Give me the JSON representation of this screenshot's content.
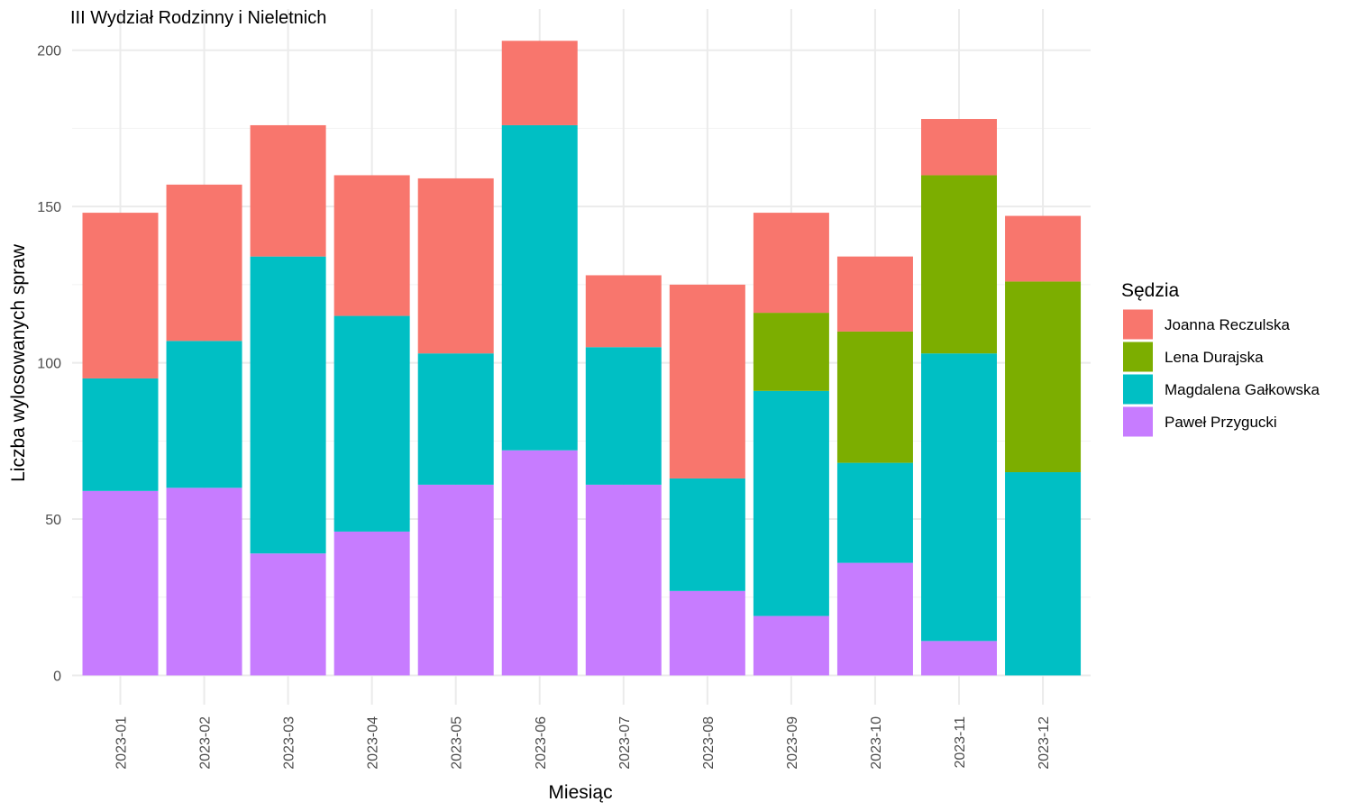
{
  "chart_data": {
    "type": "bar",
    "stacked": true,
    "title": "III Wydział Rodzinny i Nieletnich",
    "xlabel": "Miesiąc",
    "ylabel": "Liczba wylosowanych spraw",
    "categories": [
      "2023-01",
      "2023-02",
      "2023-03",
      "2023-04",
      "2023-05",
      "2023-06",
      "2023-07",
      "2023-08",
      "2023-09",
      "2023-10",
      "2023-11",
      "2023-12"
    ],
    "ylim": [
      0,
      210
    ],
    "yticks": [
      0,
      50,
      100,
      150,
      200
    ],
    "grid": true,
    "legend_title": "Sędzia",
    "legend_position": "right",
    "series": [
      {
        "name": "Joanna Reczulska",
        "color": "#F8766D",
        "values": [
          53,
          50,
          42,
          45,
          56,
          27,
          23,
          62,
          32,
          24,
          18,
          21
        ]
      },
      {
        "name": "Lena Durajska",
        "color": "#7CAE00",
        "values": [
          0,
          0,
          0,
          0,
          0,
          0,
          0,
          0,
          25,
          42,
          57,
          61
        ]
      },
      {
        "name": "Magdalena Gałkowska",
        "color": "#00BFC4",
        "values": [
          36,
          47,
          95,
          69,
          42,
          104,
          44,
          36,
          72,
          32,
          92,
          65
        ]
      },
      {
        "name": "Paweł Przygucki",
        "color": "#C77CFF",
        "values": [
          59,
          60,
          39,
          46,
          61,
          72,
          61,
          27,
          19,
          36,
          11,
          0
        ]
      }
    ]
  }
}
